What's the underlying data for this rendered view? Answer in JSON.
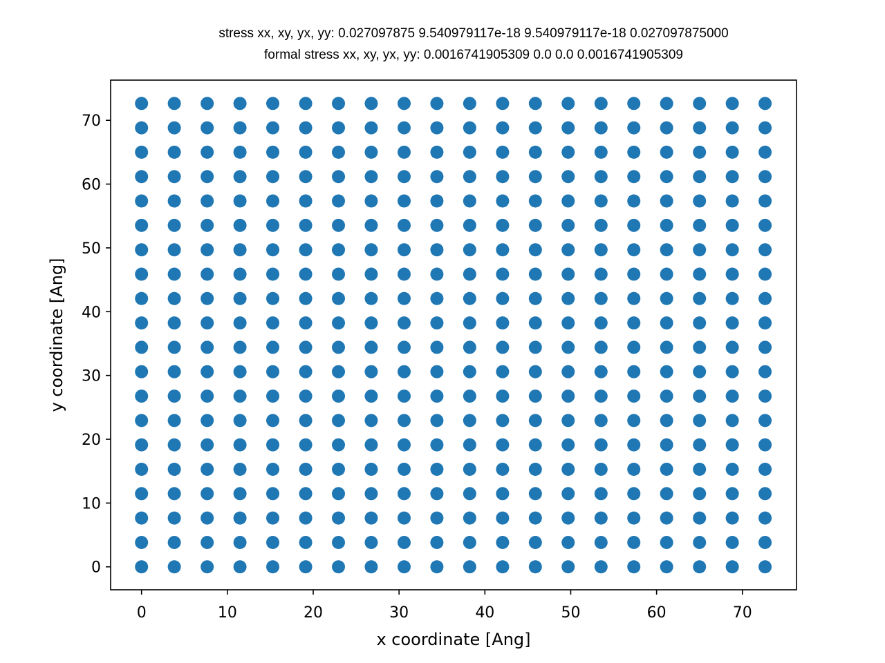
{
  "chart_data": {
    "type": "scatter",
    "title_lines": [
      "stress xx, xy, yx, yy:  0.027097875 9.540979117e-18 9.540979117e-18 0.027097875000",
      "formal stress xx, xy, yx, yy:  0.0016741905309 0.0 0.0 0.0016741905309"
    ],
    "xlabel": "x coordinate [Ang]",
    "ylabel": "y coordinate [Ang]",
    "xlim": [
      -3.6,
      76.3
    ],
    "ylim": [
      -3.6,
      76.3
    ],
    "xticks": [
      0,
      10,
      20,
      30,
      40,
      50,
      60,
      70
    ],
    "yticks": [
      0,
      10,
      20,
      30,
      40,
      50,
      60,
      70
    ],
    "grid": false,
    "point_color": "#1f77b4",
    "x": [
      0.0,
      3.82,
      7.65,
      11.47,
      15.29,
      19.12,
      22.94,
      26.76,
      30.59,
      34.41,
      38.23,
      42.06,
      45.88,
      49.7,
      53.53,
      57.35,
      61.17,
      65.0,
      68.82,
      72.64
    ],
    "y": [
      0.0,
      3.82,
      7.65,
      11.47,
      15.29,
      19.12,
      22.94,
      26.76,
      30.59,
      34.41,
      38.23,
      42.06,
      45.88,
      49.7,
      53.53,
      57.35,
      61.17,
      65.0,
      68.82,
      72.64
    ],
    "layout_note": "grid: every x value paired with every y value"
  }
}
